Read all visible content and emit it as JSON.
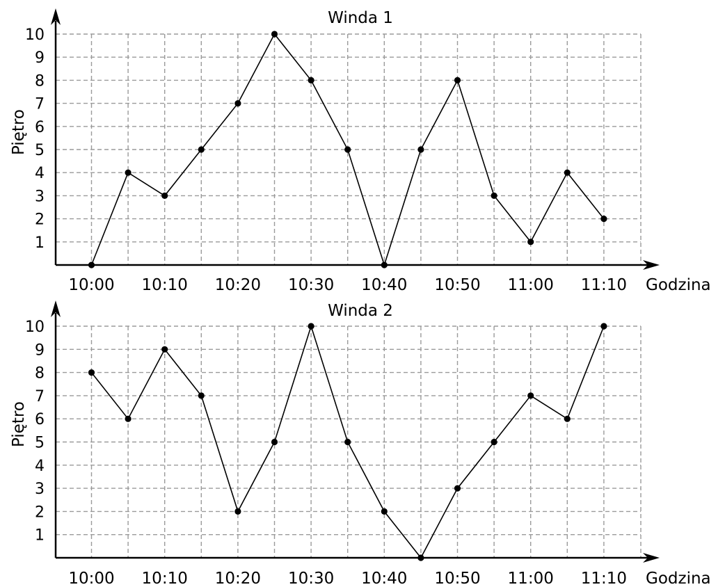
{
  "chart_data": [
    {
      "type": "line",
      "title": "Winda 1",
      "xlabel": "Godzina",
      "ylabel": "Piętro",
      "x": [
        "10:00",
        "10:05",
        "10:10",
        "10:15",
        "10:20",
        "10:25",
        "10:30",
        "10:35",
        "10:40",
        "10:45",
        "10:50",
        "10:55",
        "11:00",
        "11:05",
        "11:10"
      ],
      "x_tick_labels": [
        "10:00",
        "10:10",
        "10:20",
        "10:30",
        "10:40",
        "10:50",
        "11:00",
        "11:10"
      ],
      "y_tick_labels": [
        "1",
        "2",
        "3",
        "4",
        "5",
        "6",
        "7",
        "8",
        "9",
        "10"
      ],
      "ylim": [
        0,
        10
      ],
      "grid": true,
      "series": [
        {
          "values": [
            0,
            4,
            3,
            5,
            7,
            10,
            8,
            5,
            0,
            5,
            8,
            3,
            1,
            4,
            2
          ]
        }
      ]
    },
    {
      "type": "line",
      "title": "Winda 2",
      "xlabel": "Godzina",
      "ylabel": "Piętro",
      "x": [
        "10:00",
        "10:05",
        "10:10",
        "10:15",
        "10:20",
        "10:25",
        "10:30",
        "10:35",
        "10:40",
        "10:45",
        "10:50",
        "10:55",
        "11:00",
        "11:05",
        "11:10"
      ],
      "x_tick_labels": [
        "10:00",
        "10:10",
        "10:20",
        "10:30",
        "10:40",
        "10:50",
        "11:00",
        "11:10"
      ],
      "y_tick_labels": [
        "1",
        "2",
        "3",
        "4",
        "5",
        "6",
        "7",
        "8",
        "9",
        "10"
      ],
      "ylim": [
        0,
        10
      ],
      "grid": true,
      "series": [
        {
          "values": [
            8,
            6,
            9,
            7,
            2,
            5,
            10,
            5,
            2,
            0,
            3,
            5,
            7,
            6,
            10
          ]
        }
      ]
    }
  ]
}
